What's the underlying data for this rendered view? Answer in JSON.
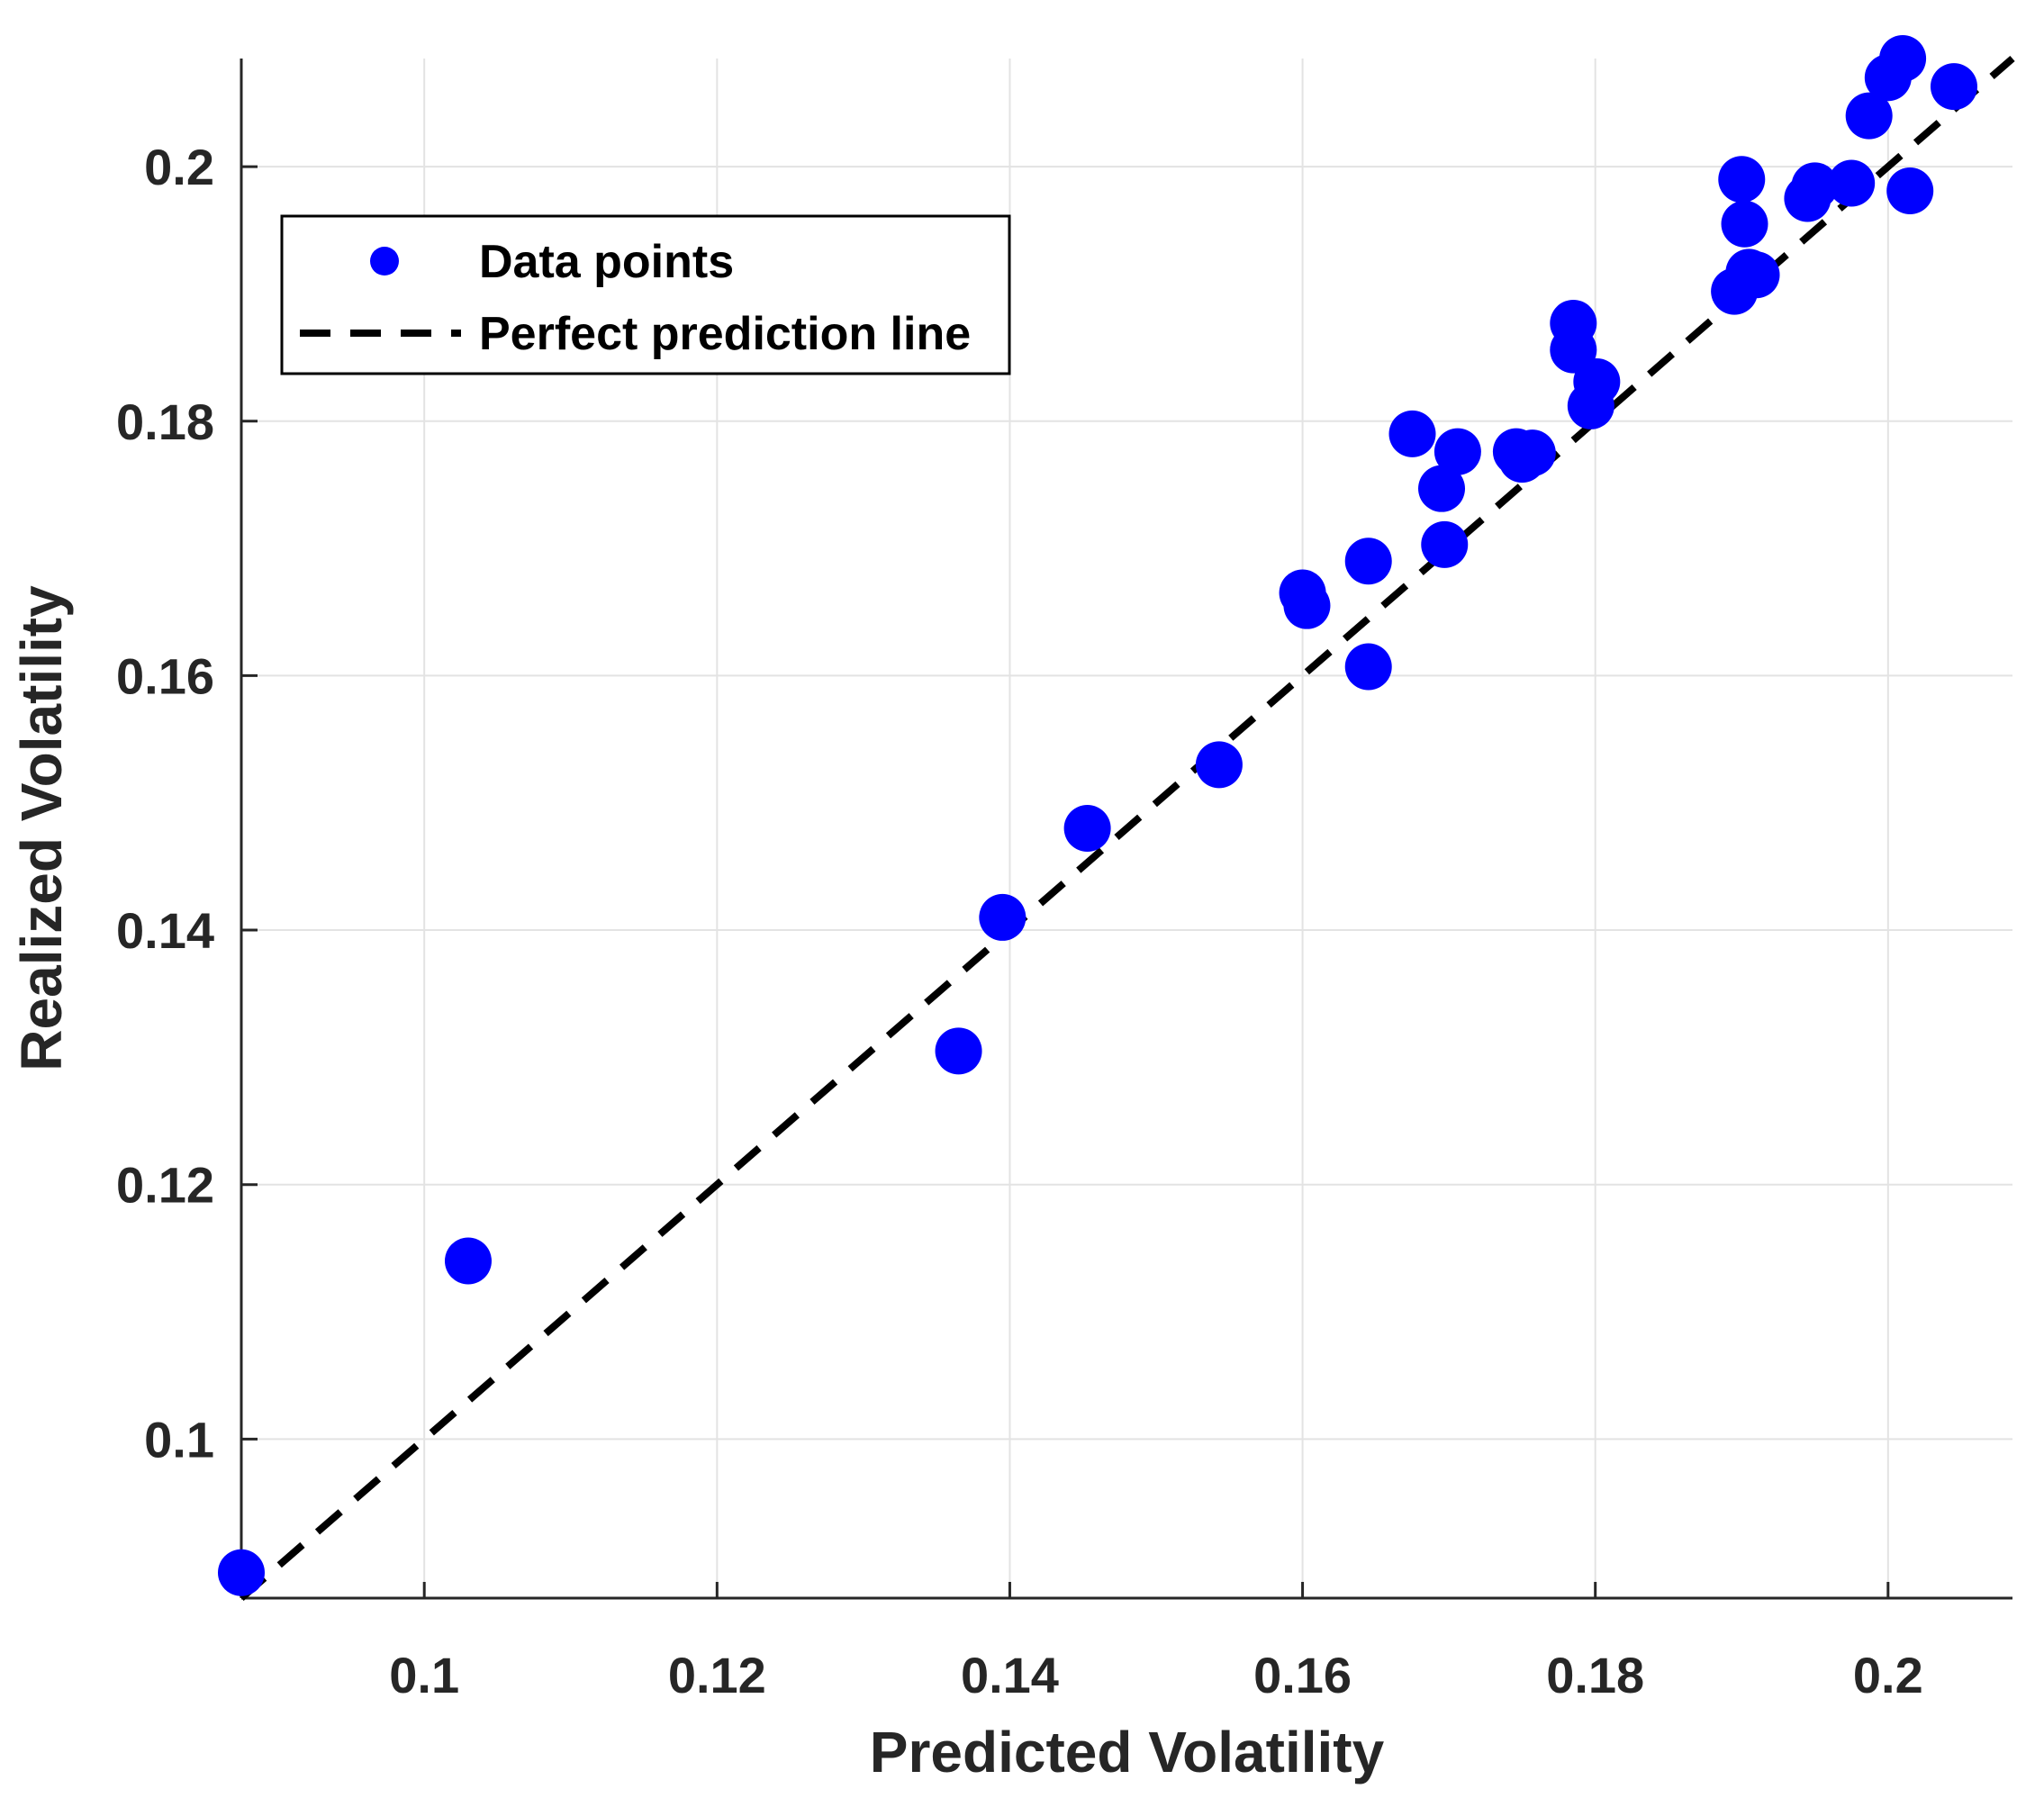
{
  "chart_data": {
    "type": "scatter",
    "title": "",
    "xlabel": "Predicted Volatility",
    "ylabel": "Realized Volatility",
    "xlim": [
      0.0875,
      0.2085
    ],
    "ylim": [
      0.0875,
      0.2085
    ],
    "xticks": [
      0.1,
      0.12,
      0.14,
      0.16,
      0.18,
      0.2
    ],
    "yticks": [
      0.1,
      0.12,
      0.14,
      0.16,
      0.18,
      0.2
    ],
    "xtick_labels": [
      "0.1",
      "0.12",
      "0.14",
      "0.16",
      "0.18",
      "0.2"
    ],
    "ytick_labels": [
      "0.1",
      "0.12",
      "0.14",
      "0.16",
      "0.18",
      "0.2"
    ],
    "grid": true,
    "legend_position": "top-left",
    "series": [
      {
        "name": "Data points",
        "kind": "scatter",
        "color": "#0000ff",
        "points": [
          [
            0.0875,
            0.0895
          ],
          [
            0.103,
            0.114
          ],
          [
            0.1365,
            0.1305
          ],
          [
            0.1395,
            0.141
          ],
          [
            0.1453,
            0.148
          ],
          [
            0.1543,
            0.153
          ],
          [
            0.16,
            0.1665
          ],
          [
            0.1603,
            0.1655
          ],
          [
            0.1645,
            0.169
          ],
          [
            0.1645,
            0.1607
          ],
          [
            0.1675,
            0.179
          ],
          [
            0.1695,
            0.1747
          ],
          [
            0.1697,
            0.1703
          ],
          [
            0.1706,
            0.1776
          ],
          [
            0.1746,
            0.1776
          ],
          [
            0.175,
            0.177
          ],
          [
            0.1757,
            0.1775
          ],
          [
            0.1785,
            0.1877
          ],
          [
            0.1785,
            0.1856
          ],
          [
            0.1797,
            0.1812
          ],
          [
            0.1801,
            0.1831
          ],
          [
            0.1895,
            0.1902
          ],
          [
            0.19,
            0.199
          ],
          [
            0.1902,
            0.1955
          ],
          [
            0.1905,
            0.1917
          ],
          [
            0.191,
            0.1915
          ],
          [
            0.1945,
            0.1975
          ],
          [
            0.195,
            0.1985
          ],
          [
            0.1975,
            0.1987
          ],
          [
            0.1987,
            0.204
          ],
          [
            0.2,
            0.207
          ],
          [
            0.201,
            0.2085
          ],
          [
            0.2015,
            0.1981
          ],
          [
            0.2045,
            0.2063
          ]
        ]
      },
      {
        "name": "Perfect prediction line",
        "kind": "line",
        "color": "#000000",
        "dashed": true,
        "points": [
          [
            0.0875,
            0.0875
          ],
          [
            0.2085,
            0.2085
          ]
        ]
      }
    ]
  }
}
